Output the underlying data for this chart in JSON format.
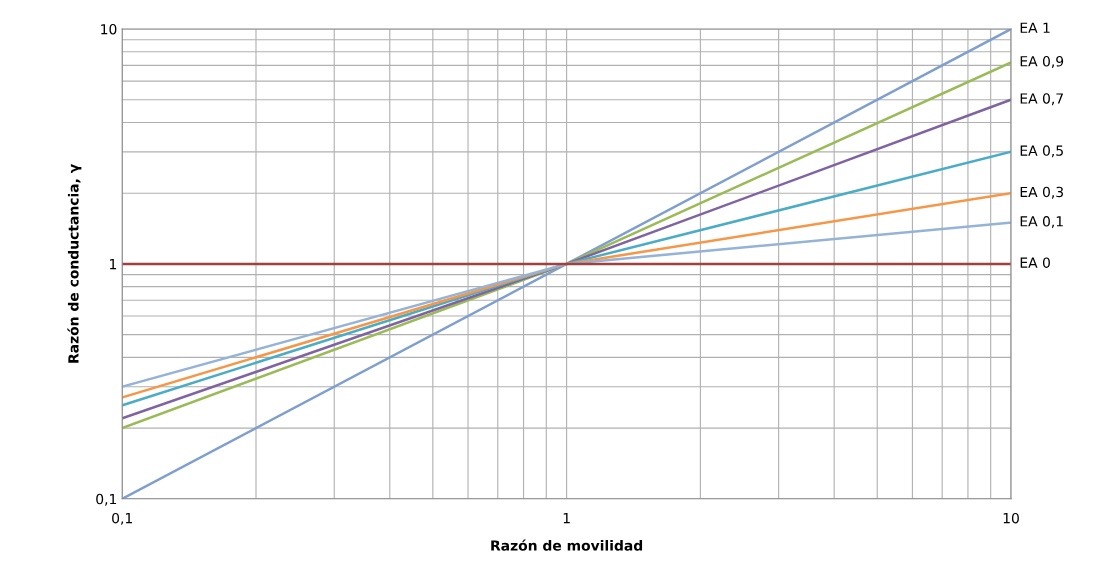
{
  "chart_data": {
    "type": "line",
    "xlabel": "Razón de movilidad",
    "ylabel": "Razón de conductancia, γ",
    "log": "xy",
    "grid": true,
    "x": [
      0.1,
      1,
      10
    ],
    "xlim": [
      0.1,
      10
    ],
    "xticks": [
      {
        "value": 0.1,
        "label": "0,1"
      },
      1,
      10
    ],
    "ylim": [
      0.1,
      10
    ],
    "yticks": [
      {
        "value": 0.1,
        "label": "0,1"
      },
      1,
      10
    ],
    "marker": "none",
    "line_style": "solid",
    "legend": false,
    "series": [
      {
        "name": "EA 1",
        "color": "#7f9fcf",
        "values": [
          0.1,
          1,
          10
        ]
      },
      {
        "name": "EA 0,9",
        "color": "#9bbb59",
        "values": [
          0.2,
          1,
          7.2
        ]
      },
      {
        "name": "EA 0,7",
        "color": "#8064a2",
        "values": [
          0.22,
          1,
          5
        ]
      },
      {
        "name": "EA 0,5",
        "color": "#4bacc6",
        "values": [
          0.25,
          1,
          3
        ]
      },
      {
        "name": "EA 0,3",
        "color": "#f79646",
        "values": [
          0.27,
          1,
          2
        ]
      },
      {
        "name": "EA 0,1",
        "color": "#95b3d7",
        "values": [
          0.3,
          1,
          1.5
        ]
      },
      {
        "name": "EA 0",
        "color": "#a0413f",
        "values": [
          1,
          1,
          1
        ]
      }
    ]
  }
}
